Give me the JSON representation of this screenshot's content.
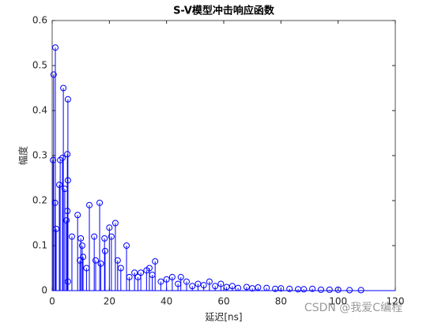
{
  "chart_data": {
    "type": "stem",
    "title": "S-V模型冲击响应函数",
    "x_label": "延迟[ns]",
    "y_label": "幅度",
    "x": [
      0.5,
      1.1,
      0.3,
      1,
      1.4,
      2.5,
      2.8,
      3.9,
      3.6,
      4.4,
      5.3,
      5.5,
      5.5,
      5.3,
      5,
      5.5,
      6.9,
      8.9,
      10,
      10.5,
      9.7,
      10.8,
      13,
      14.7,
      15.2,
      16.6,
      18.3,
      18.5,
      20,
      20.7,
      22.1,
      22.9,
      26,
      28.8,
      12,
      17,
      24,
      27,
      30,
      31,
      33,
      34,
      35,
      36,
      38,
      40,
      42,
      44,
      45,
      47,
      49,
      51,
      53,
      55,
      57,
      59,
      61,
      63,
      65,
      68,
      70,
      72,
      75,
      78,
      80,
      83,
      86,
      88,
      91,
      94,
      97,
      100,
      104,
      108
    ],
    "values": [
      0.48,
      0.54,
      0.29,
      0.195,
      0.137,
      0.235,
      0.29,
      0.45,
      0.295,
      0.226,
      0.303,
      0.425,
      0.245,
      0.177,
      0.156,
      0.02,
      0.12,
      0.168,
      0.116,
      0.1,
      0.067,
      0.075,
      0.19,
      0.12,
      0.067,
      0.195,
      0.116,
      0.088,
      0.14,
      0.12,
      0.15,
      0.067,
      0.1,
      0.04,
      0.05,
      0.06,
      0.05,
      0.03,
      0.03,
      0.04,
      0.045,
      0.05,
      0.035,
      0.065,
      0.02,
      0.025,
      0.03,
      0.015,
      0.03,
      0.02,
      0.01,
      0.015,
      0.012,
      0.02,
      0.01,
      0.015,
      0.008,
      0.01,
      0.006,
      0.008,
      0.005,
      0.007,
      0.006,
      0.004,
      0.005,
      0.004,
      0.003,
      0.003,
      0.004,
      0.002,
      0.002,
      0.002,
      0.001,
      0.001
    ],
    "color": "#0000ff",
    "xlim": [
      0,
      120
    ],
    "xticks": [
      0,
      20,
      40,
      60,
      80,
      100,
      120
    ],
    "ylim": [
      0,
      0.6
    ],
    "yticks": [
      0,
      0.1,
      0.2,
      0.3,
      0.4,
      0.5,
      0.6
    ],
    "watermark": "CSDN @我爱C编程"
  }
}
